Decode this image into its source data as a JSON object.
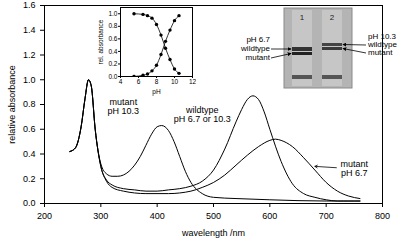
{
  "chart_data": [
    {
      "type": "line",
      "x_label": "wavelength /nm",
      "y_label": "relative absorbance",
      "xlim": [
        200,
        800
      ],
      "xticks": [
        200,
        300,
        400,
        500,
        600,
        700,
        800
      ],
      "ylim": [
        0,
        1.6
      ],
      "yticks": [
        {
          "value": 0,
          "label": "0.0"
        },
        0.2,
        0.4,
        0.6,
        0.8,
        {
          "value": 1,
          "label": "1.0"
        },
        1.2,
        1.4,
        1.6
      ],
      "color": "#000000",
      "line_style": "solid",
      "series": [
        {
          "name": "wildtype pH 6.7 or 10.3",
          "color": "#000000",
          "x": [
            245,
            255,
            265,
            272,
            278,
            283,
            290,
            300,
            310,
            320,
            340,
            360,
            380,
            400,
            420,
            440,
            460,
            480,
            500,
            520,
            540,
            550,
            560,
            570,
            580,
            590,
            600,
            620,
            640,
            660,
            680,
            700,
            720,
            740,
            760
          ],
          "values": [
            0.42,
            0.45,
            0.62,
            0.85,
            1.0,
            0.95,
            0.6,
            0.3,
            0.19,
            0.15,
            0.12,
            0.11,
            0.1,
            0.1,
            0.11,
            0.12,
            0.14,
            0.18,
            0.27,
            0.44,
            0.66,
            0.76,
            0.84,
            0.87,
            0.84,
            0.74,
            0.6,
            0.34,
            0.16,
            0.08,
            0.05,
            0.03,
            0.02,
            0.02,
            0.02
          ]
        },
        {
          "name": "mutant pH 10.3",
          "color": "#000000",
          "x": [
            245,
            255,
            265,
            272,
            278,
            283,
            290,
            300,
            310,
            320,
            330,
            340,
            350,
            360,
            370,
            380,
            390,
            400,
            408,
            420,
            430,
            440,
            450,
            460,
            480,
            500,
            540,
            600,
            700,
            760
          ],
          "values": [
            0.42,
            0.45,
            0.62,
            0.85,
            1.0,
            0.95,
            0.6,
            0.32,
            0.24,
            0.22,
            0.22,
            0.23,
            0.26,
            0.31,
            0.38,
            0.47,
            0.56,
            0.62,
            0.63,
            0.59,
            0.5,
            0.38,
            0.26,
            0.17,
            0.08,
            0.05,
            0.04,
            0.03,
            0.02,
            0.02
          ]
        },
        {
          "name": "mutant pH 6.7",
          "color": "#000000",
          "x": [
            245,
            255,
            265,
            272,
            278,
            283,
            290,
            300,
            310,
            320,
            340,
            380,
            420,
            460,
            480,
            500,
            520,
            540,
            560,
            580,
            600,
            610,
            620,
            640,
            660,
            680,
            700,
            720,
            740,
            760
          ],
          "values": [
            0.42,
            0.45,
            0.62,
            0.85,
            1.0,
            0.95,
            0.6,
            0.3,
            0.18,
            0.13,
            0.1,
            0.08,
            0.08,
            0.1,
            0.13,
            0.17,
            0.23,
            0.31,
            0.39,
            0.46,
            0.51,
            0.52,
            0.51,
            0.46,
            0.37,
            0.27,
            0.17,
            0.1,
            0.06,
            0.04
          ]
        }
      ],
      "annotations": [
        {
          "text": "mutant\npH 10.3",
          "x": 340,
          "y": 0.78
        },
        {
          "text": "wildtype\npH 6.7 or 10.3",
          "x": 480,
          "y": 0.72
        },
        {
          "text": "mutant\npH 6.7",
          "x": 750,
          "y": 0.28,
          "point": [
            680,
            0.3
          ]
        }
      ]
    },
    {
      "type": "scatter",
      "x_label": "pH",
      "y_label": "rel. absorbance",
      "xlim": [
        4,
        12
      ],
      "xticks": [
        4,
        6,
        8,
        10,
        12
      ],
      "ylim": [
        0,
        1.1
      ],
      "yticks": [
        {
          "value": 0,
          "label": "0.0"
        },
        0.2,
        0.4,
        0.6,
        0.8,
        {
          "value": 1,
          "label": "1.0"
        }
      ],
      "x": [
        5.5,
        6.5,
        7,
        7.5,
        8,
        8.5,
        9,
        9.5,
        10,
        10.5
      ],
      "series": [
        {
          "color": "#000000",
          "marker": "circle",
          "line_style": "solid",
          "values": [
            1.0,
            0.99,
            0.97,
            0.93,
            0.83,
            0.66,
            0.45,
            0.27,
            0.12,
            0.05
          ]
        },
        {
          "color": "#000000",
          "marker": "circle",
          "line_style": "solid",
          "values": [
            0.0,
            0.02,
            0.04,
            0.09,
            0.18,
            0.35,
            0.56,
            0.74,
            0.89,
            0.97
          ]
        }
      ]
    }
  ],
  "gel": {
    "lanes": [
      "1",
      "2"
    ],
    "left_labels": [
      "pH 6.7",
      "wildtype",
      "mutant"
    ],
    "right_labels": [
      "pH 10.3",
      "wildtype",
      "mutant"
    ]
  }
}
